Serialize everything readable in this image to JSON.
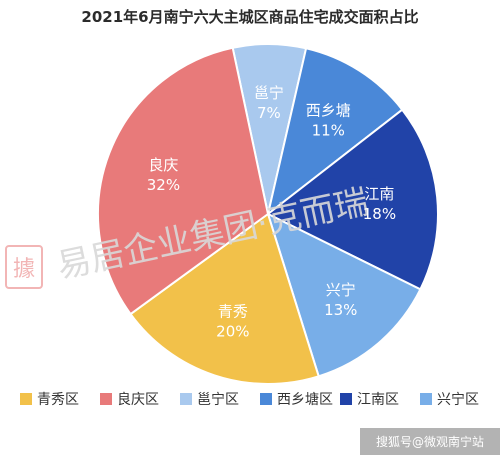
{
  "chart_data": {
    "type": "pie",
    "title": "2021年6月南宁六大主城区商品住宅成交面积占比",
    "categories": [
      "邕宁区",
      "西乡塘区",
      "江南区",
      "兴宁区",
      "青秀区",
      "良庆区"
    ],
    "slice_labels": [
      "邕宁",
      "西乡塘",
      "江南",
      "兴宁",
      "青秀",
      "良庆"
    ],
    "values": [
      7,
      11,
      18,
      13,
      20,
      32
    ],
    "value_labels": [
      "7%",
      "11%",
      "18%",
      "13%",
      "20%",
      "32%"
    ],
    "colors": [
      "#a9c9ee",
      "#4a88d8",
      "#2143a8",
      "#78aee8",
      "#f2c14a",
      "#e87a7a"
    ],
    "legend_order": [
      "青秀区",
      "良庆区",
      "邕宁区",
      "西乡塘区",
      "江南区",
      "兴宁区"
    ],
    "legend_colors": [
      "#f2c14a",
      "#e87a7a",
      "#a9c9ee",
      "#4a88d8",
      "#2143a8",
      "#78aee8"
    ],
    "legend_position": "bottom"
  },
  "watermark": {
    "text": "易居企业集团·克而瑞",
    "logo_text": "據"
  },
  "footer": {
    "text": "搜狐号@微观南宁站"
  }
}
